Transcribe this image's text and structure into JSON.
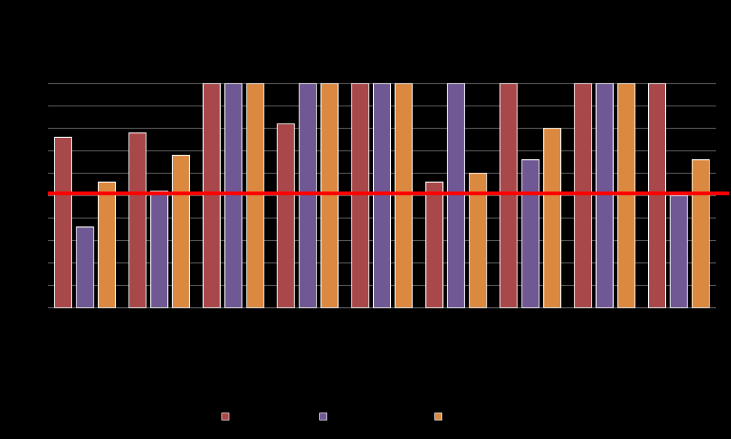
{
  "chart_data": {
    "type": "bar",
    "title": "",
    "xlabel": "",
    "ylabel": "",
    "ylim": [
      0,
      10
    ],
    "y_ticks": [
      0,
      1,
      2,
      3,
      4,
      5,
      6,
      7,
      8,
      9,
      10
    ],
    "grid": true,
    "legend_position": "bottom",
    "categories": [
      "",
      "",
      "",
      "",
      "",
      "",
      "",
      "",
      ""
    ],
    "series": [
      {
        "color": "#a8484a",
        "values": [
          7.6,
          7.8,
          10,
          8.2,
          10,
          5.6,
          10,
          10,
          10
        ]
      },
      {
        "color": "#6f5893",
        "values": [
          3.6,
          5.2,
          10,
          10,
          10,
          10,
          6.6,
          10,
          5.0
        ]
      },
      {
        "color": "#db8840",
        "values": [
          5.6,
          6.8,
          10,
          10,
          10,
          6.0,
          8.0,
          10,
          6.6
        ]
      }
    ],
    "reference_line": {
      "value": 5.1,
      "color": "#ff0000"
    },
    "colors": {
      "background": "#000000",
      "grid": "#8c8c8c",
      "bar_border": "#ffffff"
    }
  }
}
